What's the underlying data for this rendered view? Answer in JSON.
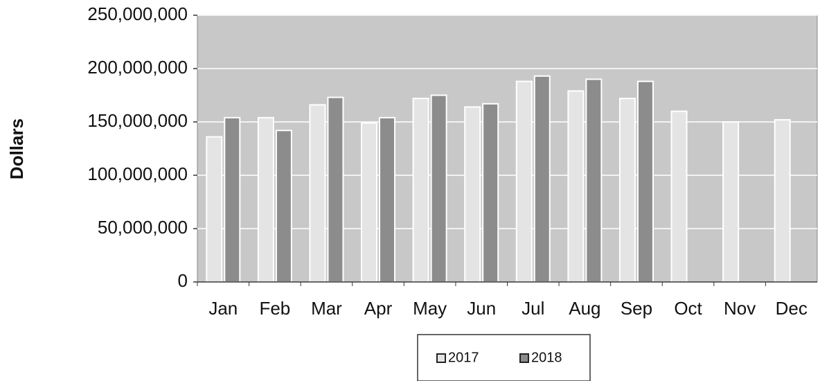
{
  "chart_data": {
    "type": "bar",
    "y_label": "Dollars",
    "categories": [
      "Jan",
      "Feb",
      "Mar",
      "Apr",
      "May",
      "Jun",
      "Jul",
      "Aug",
      "Sep",
      "Oct",
      "Nov",
      "Dec"
    ],
    "series": [
      {
        "name": "2017",
        "color": "#e4e4e4",
        "values": [
          136000000,
          154000000,
          166000000,
          149000000,
          172000000,
          164000000,
          188000000,
          179000000,
          172000000,
          160000000,
          150000000,
          152000000
        ]
      },
      {
        "name": "2018",
        "color": "#8c8c8c",
        "values": [
          154000000,
          142000000,
          173000000,
          154000000,
          175000000,
          167000000,
          193000000,
          190000000,
          188000000,
          null,
          null,
          null
        ]
      }
    ],
    "ylim": [
      0,
      250000000
    ],
    "yticks": [
      0,
      {
        "value": 50000000,
        "label": "50,000,000"
      },
      {
        "value": 100000000,
        "label": "100,000,000"
      },
      {
        "value": 150000000,
        "label": "150,000,000"
      },
      {
        "value": 200000000,
        "label": "200,000,000"
      },
      {
        "value": 250000000,
        "label": "250,000,000"
      }
    ],
    "grid": true,
    "legend": "bottom"
  }
}
